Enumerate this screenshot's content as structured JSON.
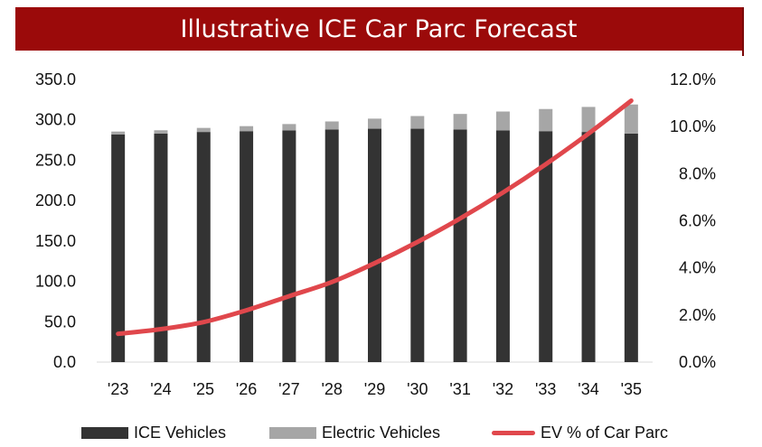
{
  "chart_data": {
    "type": "bar",
    "title": "Illustrative ICE Car Parc Forecast",
    "categories": [
      "'23",
      "'24",
      "'25",
      "'26",
      "'27",
      "'28",
      "'29",
      "'30",
      "'31",
      "'32",
      "'33",
      "'34",
      "'35"
    ],
    "series": [
      {
        "name": "ICE Vehicles",
        "type": "stacked-bar",
        "axis": "left",
        "color": "#333333",
        "values": [
          282,
          283,
          285,
          286,
          287,
          288,
          289,
          289,
          288,
          287,
          286,
          285,
          283
        ]
      },
      {
        "name": "Electric Vehicles",
        "type": "stacked-bar",
        "axis": "left",
        "color": "#a6a6a6",
        "values": [
          3.5,
          4.1,
          5.0,
          6.2,
          7.8,
          10.0,
          12.5,
          15.7,
          19.3,
          23.3,
          27.4,
          31.0,
          36.0
        ]
      },
      {
        "name": "EV % of Car Parc",
        "type": "line",
        "axis": "right",
        "color": "#e0474c",
        "values": [
          1.2,
          1.4,
          1.7,
          2.2,
          2.8,
          3.4,
          4.2,
          5.1,
          6.1,
          7.2,
          8.4,
          9.7,
          11.1
        ]
      }
    ],
    "y_left": {
      "ticks": [
        "0.0",
        "50.0",
        "100.0",
        "150.0",
        "200.0",
        "250.0",
        "300.0",
        "350.0"
      ],
      "range": [
        0,
        350
      ]
    },
    "y_right": {
      "ticks": [
        "0.0%",
        "2.0%",
        "4.0%",
        "6.0%",
        "8.0%",
        "10.0%",
        "12.0%"
      ],
      "range": [
        0,
        12
      ]
    },
    "grid": false,
    "legend_position": "bottom"
  }
}
